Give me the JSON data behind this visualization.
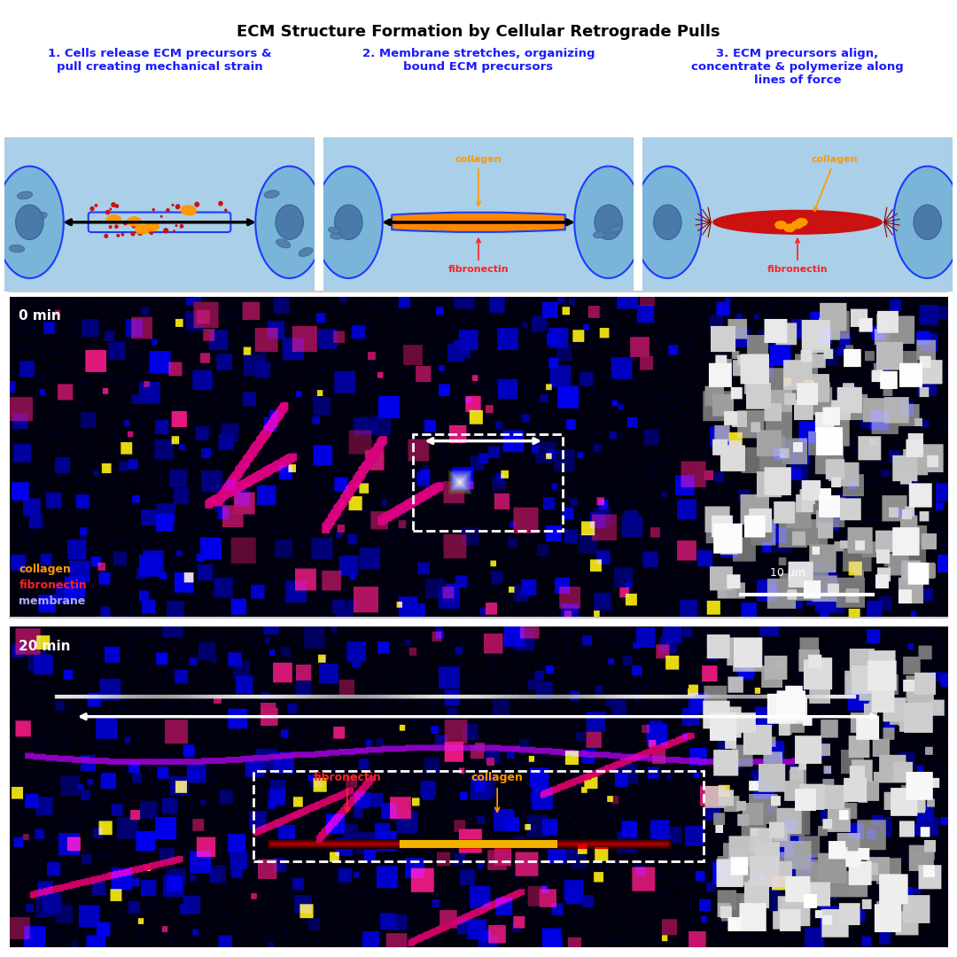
{
  "title": "ECM Structure Formation by Cellular Retrograde Pulls",
  "title_fontsize": 13,
  "title_fontweight": "bold",
  "panel1_title": "1. Cells release ECM precursors &\npull creating mechanical strain",
  "panel2_title": "2. Membrane stretches, organizing\nbound ECM precursors",
  "panel3_title": "3. ECM precursors align,\nconcentrate & polymerize along\nlines of force",
  "panel_title_color": "#1a1aff",
  "panel_title_fontsize": 9.5,
  "panel_bg_color": "#aacfe8",
  "cell_color": "#7ab4d8",
  "membrane_color": "#1a3cff",
  "label_collagen": "collagen",
  "label_fibronectin": "fibronectin",
  "label_membrane": "membrane",
  "collagen_color": "#ff9900",
  "fibronectin_color": "#ff2222",
  "membrane_label_color": "#aaaaff",
  "micro1_time": "0 min",
  "micro2_time": "20 min",
  "scalebar_label": "10 μm",
  "dashed_box_color": "white",
  "arrow_color": "white",
  "micro_bg_color": "#000033",
  "separator_color": "#cccccc",
  "fig_bg": "white"
}
